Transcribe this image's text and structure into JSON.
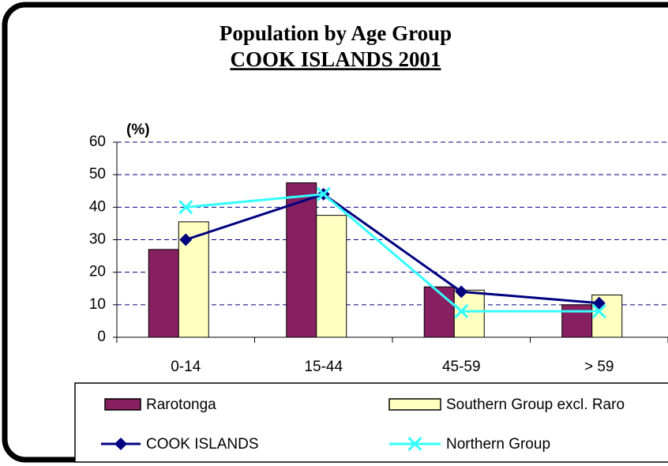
{
  "chart_data": {
    "type": "bar",
    "title": "Population by Age Group",
    "subtitle": "COOK ISLANDS 2001",
    "y_label": "(%)",
    "categories": [
      "0-14",
      "15-44",
      "45-59",
      "> 59"
    ],
    "series": [
      {
        "name": "Rarotonga",
        "type": "bar",
        "color": "#862060",
        "values": [
          27,
          47.5,
          15.5,
          10
        ]
      },
      {
        "name": "Southern Group excl. Raro",
        "type": "bar",
        "color": "#ffffc0",
        "values": [
          35.5,
          37.5,
          14.5,
          13
        ]
      },
      {
        "name": "COOK ISLANDS",
        "type": "line",
        "marker": "diamond",
        "color": "#000080",
        "values": [
          30,
          44,
          14,
          10.5
        ]
      },
      {
        "name": "Northern Group",
        "type": "line",
        "marker": "x",
        "color": "#33ffff",
        "values": [
          40,
          44,
          8,
          8
        ]
      }
    ],
    "ylim": [
      0,
      60
    ],
    "yticks": [
      0,
      10,
      20,
      30,
      40,
      50,
      60
    ],
    "grid": true
  }
}
